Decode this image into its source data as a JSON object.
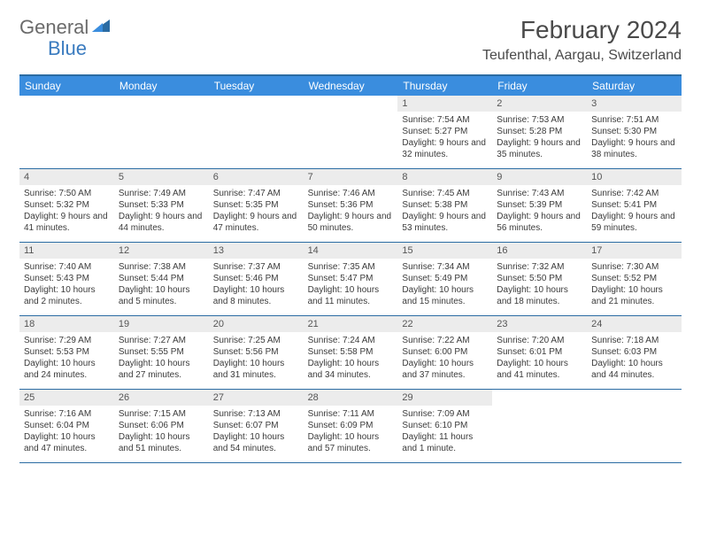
{
  "logo": {
    "general": "General",
    "blue": "Blue"
  },
  "title": "February 2024",
  "location": "Teufenthal, Aargau, Switzerland",
  "colors": {
    "header_bg": "#3a8dde",
    "header_text": "#ffffff",
    "border": "#2b6ca3",
    "daynum_bg": "#ececec",
    "logo_gray": "#6b6b6b",
    "logo_blue": "#3a7bbf"
  },
  "day_names": [
    "Sunday",
    "Monday",
    "Tuesday",
    "Wednesday",
    "Thursday",
    "Friday",
    "Saturday"
  ],
  "weeks": [
    [
      {
        "n": "",
        "sr": "",
        "ss": "",
        "dl": ""
      },
      {
        "n": "",
        "sr": "",
        "ss": "",
        "dl": ""
      },
      {
        "n": "",
        "sr": "",
        "ss": "",
        "dl": ""
      },
      {
        "n": "",
        "sr": "",
        "ss": "",
        "dl": ""
      },
      {
        "n": "1",
        "sr": "Sunrise: 7:54 AM",
        "ss": "Sunset: 5:27 PM",
        "dl": "Daylight: 9 hours and 32 minutes."
      },
      {
        "n": "2",
        "sr": "Sunrise: 7:53 AM",
        "ss": "Sunset: 5:28 PM",
        "dl": "Daylight: 9 hours and 35 minutes."
      },
      {
        "n": "3",
        "sr": "Sunrise: 7:51 AM",
        "ss": "Sunset: 5:30 PM",
        "dl": "Daylight: 9 hours and 38 minutes."
      }
    ],
    [
      {
        "n": "4",
        "sr": "Sunrise: 7:50 AM",
        "ss": "Sunset: 5:32 PM",
        "dl": "Daylight: 9 hours and 41 minutes."
      },
      {
        "n": "5",
        "sr": "Sunrise: 7:49 AM",
        "ss": "Sunset: 5:33 PM",
        "dl": "Daylight: 9 hours and 44 minutes."
      },
      {
        "n": "6",
        "sr": "Sunrise: 7:47 AM",
        "ss": "Sunset: 5:35 PM",
        "dl": "Daylight: 9 hours and 47 minutes."
      },
      {
        "n": "7",
        "sr": "Sunrise: 7:46 AM",
        "ss": "Sunset: 5:36 PM",
        "dl": "Daylight: 9 hours and 50 minutes."
      },
      {
        "n": "8",
        "sr": "Sunrise: 7:45 AM",
        "ss": "Sunset: 5:38 PM",
        "dl": "Daylight: 9 hours and 53 minutes."
      },
      {
        "n": "9",
        "sr": "Sunrise: 7:43 AM",
        "ss": "Sunset: 5:39 PM",
        "dl": "Daylight: 9 hours and 56 minutes."
      },
      {
        "n": "10",
        "sr": "Sunrise: 7:42 AM",
        "ss": "Sunset: 5:41 PM",
        "dl": "Daylight: 9 hours and 59 minutes."
      }
    ],
    [
      {
        "n": "11",
        "sr": "Sunrise: 7:40 AM",
        "ss": "Sunset: 5:43 PM",
        "dl": "Daylight: 10 hours and 2 minutes."
      },
      {
        "n": "12",
        "sr": "Sunrise: 7:38 AM",
        "ss": "Sunset: 5:44 PM",
        "dl": "Daylight: 10 hours and 5 minutes."
      },
      {
        "n": "13",
        "sr": "Sunrise: 7:37 AM",
        "ss": "Sunset: 5:46 PM",
        "dl": "Daylight: 10 hours and 8 minutes."
      },
      {
        "n": "14",
        "sr": "Sunrise: 7:35 AM",
        "ss": "Sunset: 5:47 PM",
        "dl": "Daylight: 10 hours and 11 minutes."
      },
      {
        "n": "15",
        "sr": "Sunrise: 7:34 AM",
        "ss": "Sunset: 5:49 PM",
        "dl": "Daylight: 10 hours and 15 minutes."
      },
      {
        "n": "16",
        "sr": "Sunrise: 7:32 AM",
        "ss": "Sunset: 5:50 PM",
        "dl": "Daylight: 10 hours and 18 minutes."
      },
      {
        "n": "17",
        "sr": "Sunrise: 7:30 AM",
        "ss": "Sunset: 5:52 PM",
        "dl": "Daylight: 10 hours and 21 minutes."
      }
    ],
    [
      {
        "n": "18",
        "sr": "Sunrise: 7:29 AM",
        "ss": "Sunset: 5:53 PM",
        "dl": "Daylight: 10 hours and 24 minutes."
      },
      {
        "n": "19",
        "sr": "Sunrise: 7:27 AM",
        "ss": "Sunset: 5:55 PM",
        "dl": "Daylight: 10 hours and 27 minutes."
      },
      {
        "n": "20",
        "sr": "Sunrise: 7:25 AM",
        "ss": "Sunset: 5:56 PM",
        "dl": "Daylight: 10 hours and 31 minutes."
      },
      {
        "n": "21",
        "sr": "Sunrise: 7:24 AM",
        "ss": "Sunset: 5:58 PM",
        "dl": "Daylight: 10 hours and 34 minutes."
      },
      {
        "n": "22",
        "sr": "Sunrise: 7:22 AM",
        "ss": "Sunset: 6:00 PM",
        "dl": "Daylight: 10 hours and 37 minutes."
      },
      {
        "n": "23",
        "sr": "Sunrise: 7:20 AM",
        "ss": "Sunset: 6:01 PM",
        "dl": "Daylight: 10 hours and 41 minutes."
      },
      {
        "n": "24",
        "sr": "Sunrise: 7:18 AM",
        "ss": "Sunset: 6:03 PM",
        "dl": "Daylight: 10 hours and 44 minutes."
      }
    ],
    [
      {
        "n": "25",
        "sr": "Sunrise: 7:16 AM",
        "ss": "Sunset: 6:04 PM",
        "dl": "Daylight: 10 hours and 47 minutes."
      },
      {
        "n": "26",
        "sr": "Sunrise: 7:15 AM",
        "ss": "Sunset: 6:06 PM",
        "dl": "Daylight: 10 hours and 51 minutes."
      },
      {
        "n": "27",
        "sr": "Sunrise: 7:13 AM",
        "ss": "Sunset: 6:07 PM",
        "dl": "Daylight: 10 hours and 54 minutes."
      },
      {
        "n": "28",
        "sr": "Sunrise: 7:11 AM",
        "ss": "Sunset: 6:09 PM",
        "dl": "Daylight: 10 hours and 57 minutes."
      },
      {
        "n": "29",
        "sr": "Sunrise: 7:09 AM",
        "ss": "Sunset: 6:10 PM",
        "dl": "Daylight: 11 hours and 1 minute."
      },
      {
        "n": "",
        "sr": "",
        "ss": "",
        "dl": ""
      },
      {
        "n": "",
        "sr": "",
        "ss": "",
        "dl": ""
      }
    ]
  ]
}
